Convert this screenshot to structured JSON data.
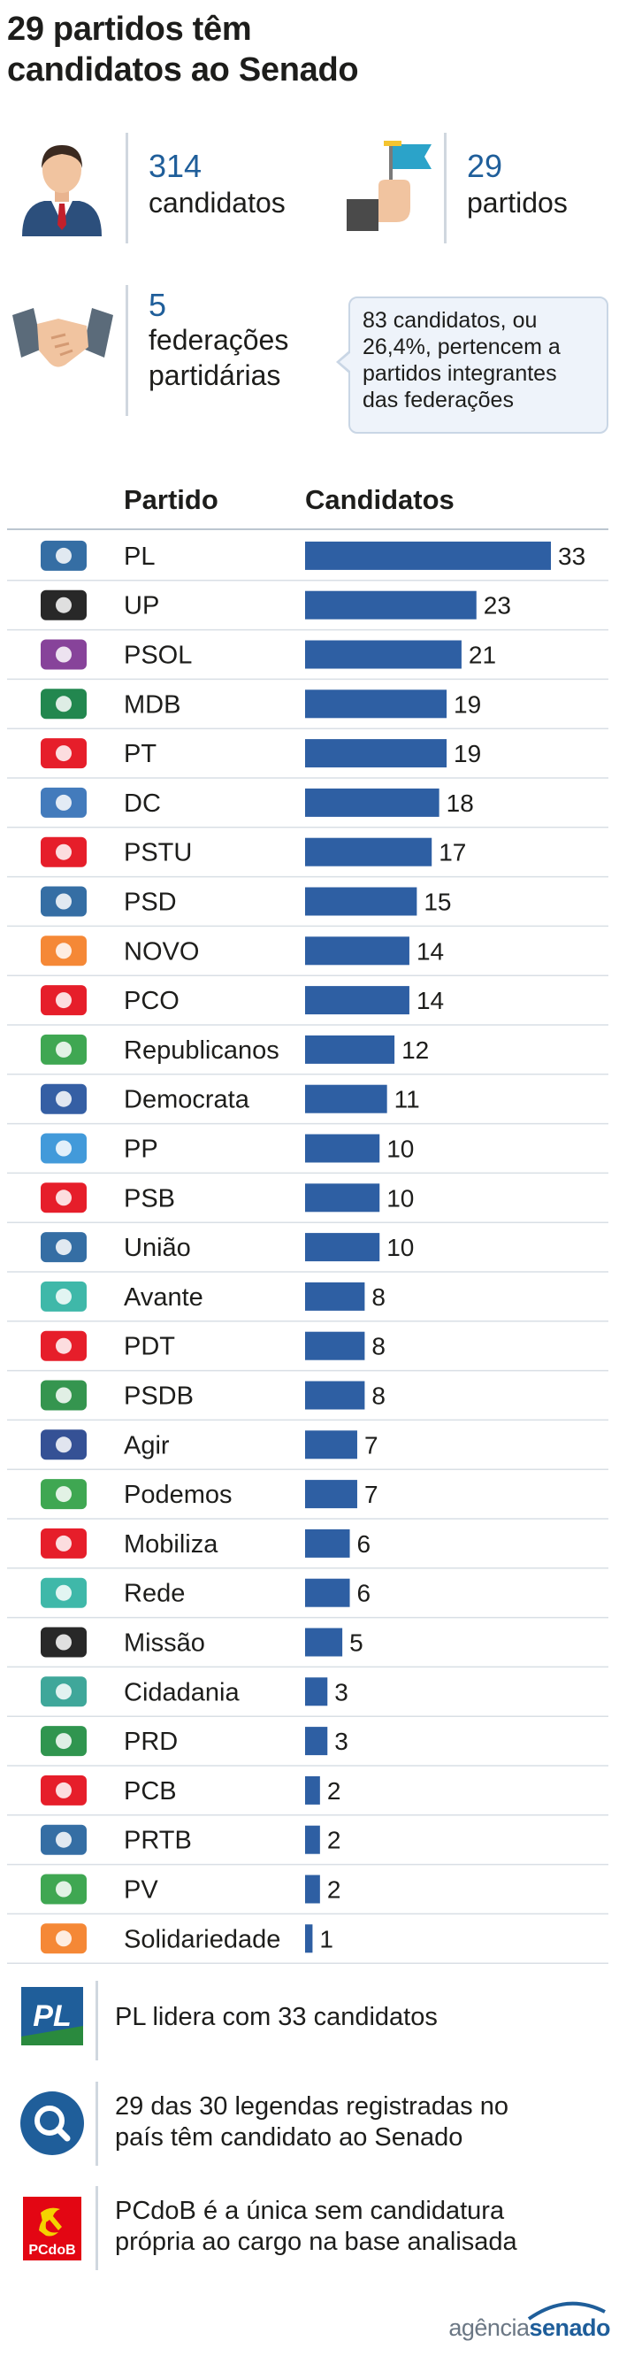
{
  "title": {
    "line1": "29 partidos têm",
    "line2": "candidatos ao Senado"
  },
  "stats": {
    "candidates_num": "314",
    "candidates_label": "candidatos",
    "parties_num": "29",
    "parties_label": "partidos",
    "federations_num": "5",
    "federations_label1": "federações",
    "federations_label2": "partidárias",
    "note_lines": [
      "83 candidatos, ou",
      "26,4%, pertencem a",
      "partidos integrantes",
      "das federações"
    ]
  },
  "colors": {
    "bar": "#2e5fa3",
    "accent": "#1f5e9a",
    "pcdob": "#e30613",
    "pl": "#1f5e9a"
  },
  "chart_data": {
    "type": "bar",
    "orientation": "horizontal",
    "headers": {
      "party": "Partido",
      "value": "Candidatos"
    },
    "categories": [
      "PL",
      "UP",
      "PSOL",
      "MDB",
      "PT",
      "DC",
      "PSTU",
      "PSD",
      "NOVO",
      "PCO",
      "Republicanos",
      "Democrata",
      "PP",
      "PSB",
      "União",
      "Avante",
      "PDT",
      "PSDB",
      "Agir",
      "Podemos",
      "Mobiliza",
      "Rede",
      "Missão",
      "Cidadania",
      "PRD",
      "PCB",
      "PRTB",
      "PV",
      "Solidariedade"
    ],
    "values": [
      33,
      23,
      21,
      19,
      19,
      18,
      17,
      15,
      14,
      14,
      12,
      11,
      10,
      10,
      10,
      8,
      8,
      8,
      7,
      7,
      6,
      6,
      5,
      3,
      3,
      2,
      2,
      2,
      1
    ],
    "logo_icons": [
      "pl-logo-icon",
      "up-logo-icon",
      "psol-logo-icon",
      "mdb-logo-icon",
      "pt-star-icon",
      "dc-logo-icon",
      "pstu-logo-icon",
      "psd-logo-icon",
      "novo-logo-icon",
      "pco-logo-icon",
      "republicanos-tree-icon",
      "democrata-logo-icon",
      "pp-logo-icon",
      "psb-dove-icon",
      "uniao-logo-icon",
      "avante-arrow-icon",
      "pdt-logo-icon",
      "psdb-flag-icon",
      "agir-logo-icon",
      "podemos-leaf-icon",
      "mobiliza-logo-icon",
      "rede-logo-icon",
      "missao-logo-icon",
      "cidadania-logo-icon",
      "prd-logo-icon",
      "pcb-hammer-sickle-icon",
      "prtb-logo-icon",
      "pv-logo-icon",
      "solidariedade-logo-icon"
    ],
    "xlim": [
      0,
      33
    ]
  },
  "facts": [
    {
      "icon": "pl-logo-icon",
      "text1": "PL lidera com 33 candidatos",
      "text2": ""
    },
    {
      "icon": "magnifier-icon",
      "text1": "29 das 30 legendas registradas no",
      "text2": "país têm candidato ao Senado"
    },
    {
      "icon": "pcdob-logo-icon",
      "text1": "PCdoB é a única sem candidatura",
      "text2": "própria ao cargo na base analisada"
    }
  ],
  "footer": {
    "brand1": "agência",
    "brand2": "senado"
  },
  "logo_text": {
    "pl": "PL",
    "pcdob": "PCdoB"
  }
}
